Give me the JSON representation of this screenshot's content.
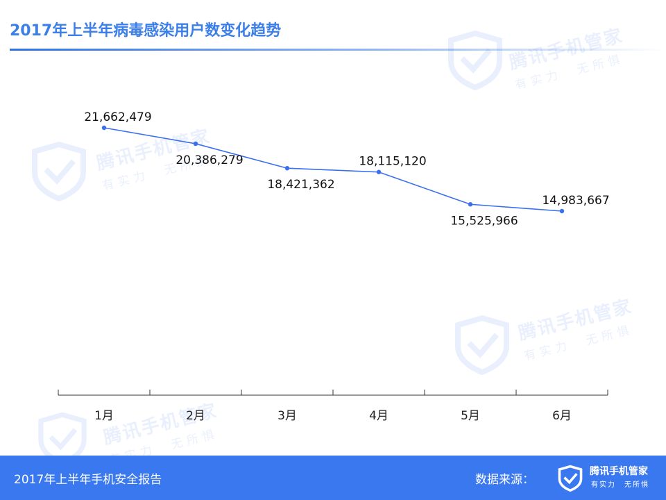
{
  "header": {
    "title": "2017年上半年病毒感染用户数变化趋势"
  },
  "watermark": {
    "brand": "腾讯手机管家",
    "slogan": "有实力　无所惧"
  },
  "footer": {
    "report_title": "2017年上半年手机安全报告",
    "source_label": "数据来源：",
    "brand": "腾讯手机管家",
    "slogan": "有实力　无所惧"
  },
  "colors": {
    "accent": "#3a78f0",
    "line": "#3a6ff0",
    "title": "#3c7fe8",
    "footer_bg": "#3a78f0"
  },
  "chart_data": {
    "type": "line",
    "title": "2017年上半年病毒感染用户数变化趋势",
    "xlabel": "",
    "ylabel": "",
    "categories": [
      "1月",
      "2月",
      "3月",
      "4月",
      "5月",
      "6月"
    ],
    "series": [
      {
        "values": [
          21662479,
          20386279,
          18421362,
          18115120,
          15525966,
          14983667
        ],
        "labels": [
          "21,662,479",
          "20,386,279",
          "18,421,362",
          "18,115,120",
          "15,525,966",
          "14,983,667"
        ]
      }
    ],
    "ylim": [
      0,
      25000000
    ],
    "grid": false,
    "legend": "none"
  }
}
